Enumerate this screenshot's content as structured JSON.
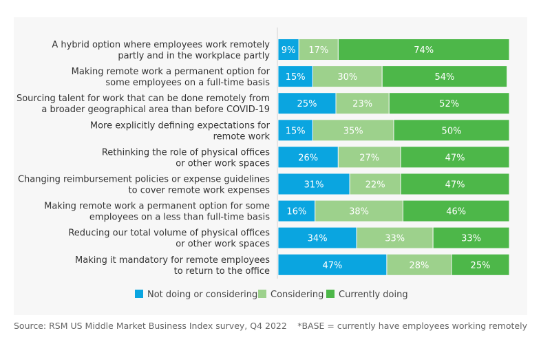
{
  "chart_data": {
    "type": "bar",
    "orientation": "horizontal",
    "stacked": true,
    "categories": [
      [
        "A hybrid option where employees work remotely",
        "partly and in the workplace partly"
      ],
      [
        "Making remote work a permanent option for",
        "some employees on a full-time basis"
      ],
      [
        "Sourcing talent for work that can be done remotely from",
        "a broader geographical area than before COVID-19"
      ],
      [
        "More explicitly defining expectations for",
        "remote work"
      ],
      [
        "Rethinking the role of physical offices",
        "or other work spaces"
      ],
      [
        "Changing reimbursement policies or expense guidelines",
        "to cover remote work expenses"
      ],
      [
        "Making remote work a permanent option for some",
        "employees on a less than full-time basis"
      ],
      [
        "Reducing our total volume of physical offices",
        "or other work spaces"
      ],
      [
        "Making it mandatory for remote employees",
        "to return to the office"
      ]
    ],
    "series": [
      {
        "name": "Not doing or considering",
        "color": "#0aa5e0",
        "values": [
          9,
          15,
          25,
          15,
          26,
          31,
          16,
          34,
          47
        ]
      },
      {
        "name": "Considering",
        "color": "#9dd18c",
        "values": [
          17,
          30,
          23,
          35,
          27,
          22,
          38,
          33,
          28
        ]
      },
      {
        "name": "Currently doing",
        "color": "#4db749",
        "values": [
          74,
          54,
          52,
          50,
          47,
          47,
          46,
          33,
          25
        ]
      }
    ],
    "value_suffix": "%",
    "xlim": [
      0,
      100
    ],
    "legend": "bottom",
    "grid": false
  },
  "footer": {
    "source": "Source: RSM US Middle Market Business Index survey, Q4 2022",
    "note": "*BASE = currently have employees working remotely"
  }
}
